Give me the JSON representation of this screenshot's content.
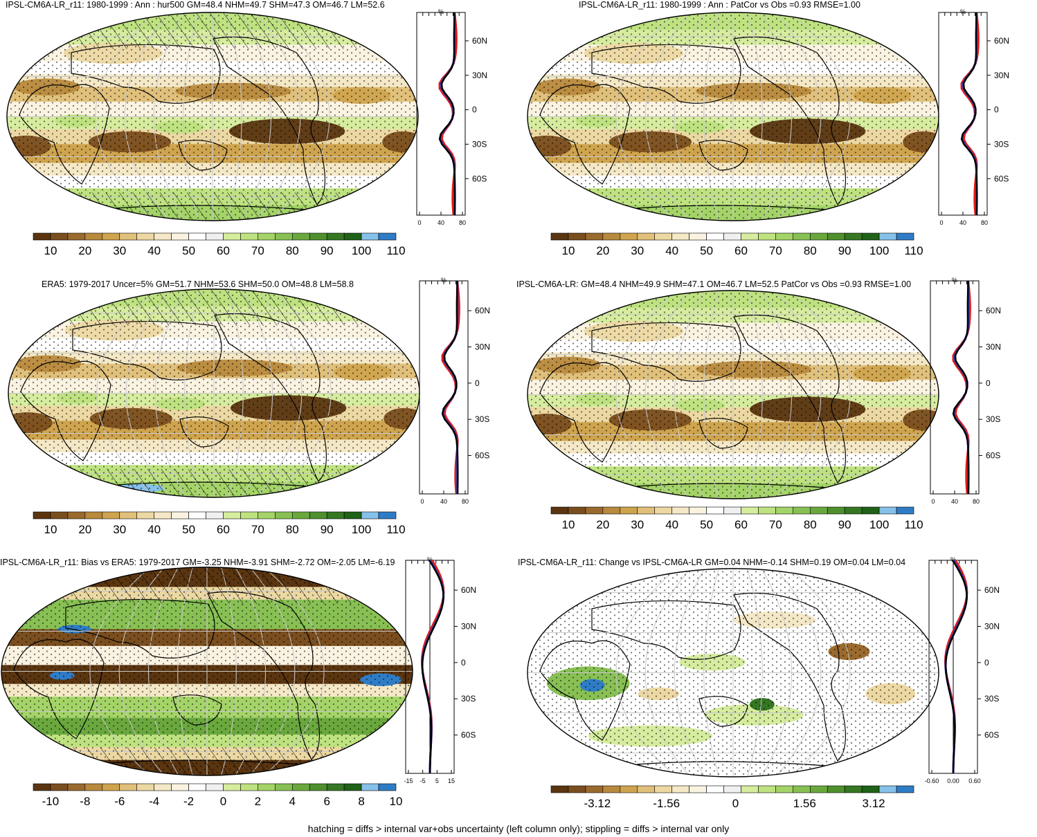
{
  "palettes": {
    "hur": [
      "#5a3510",
      "#7a4e1e",
      "#9a6a2e",
      "#b88a3e",
      "#cfa44e",
      "#e0c07a",
      "#ecd8a2",
      "#f4e8c6",
      "#faf3e1",
      "#ffffff",
      "#f0f0f0",
      "#d6ec9e",
      "#bee280",
      "#a4d468",
      "#88c054",
      "#6aa83e",
      "#4f902e",
      "#357722",
      "#1f6218",
      "#86c1ea",
      "#2f7cc6"
    ],
    "bias": [
      "#5a3510",
      "#7a4e1e",
      "#9a6a2e",
      "#b88a3e",
      "#cfa44e",
      "#e0c07a",
      "#ecd8a2",
      "#f4e8c6",
      "#faf3e1",
      "#ffffff",
      "#f0f0f0",
      "#d6ec9e",
      "#bee280",
      "#a4d468",
      "#88c054",
      "#6aa83e",
      "#4f902e",
      "#357722",
      "#1f6218",
      "#86c1ea",
      "#2f7cc6"
    ],
    "profile_colors": {
      "model": "#1a3fd6",
      "obs": "#e01b1b",
      "mean": "#000000"
    }
  },
  "panels": [
    {
      "id": "p1",
      "title": "IPSL-CM6A-LR_r11: 1980-1999 : Ann : hur500 GM=48.4 NHM=49.7 SHM=47.3 OM=46.7 LM=52.6",
      "kind": "hur",
      "hatch": true,
      "stipple": true,
      "profile_unit": "%",
      "profile_x_ticks": [
        "0",
        "40",
        "80"
      ],
      "profile_lat_ticks": [
        "60N",
        "30N",
        "0",
        "30S",
        "60S"
      ],
      "cbar_labels": [
        "10",
        "20",
        "30",
        "40",
        "50",
        "60",
        "70",
        "80",
        "90",
        "100",
        "110"
      ]
    },
    {
      "id": "p2",
      "title": "IPSL-CM6A-LR_r11: 1980-1999 : Ann : PatCor vs Obs =0.93 RMSE=1.00",
      "kind": "hur",
      "hatch": false,
      "stipple": true,
      "profile_unit": "%",
      "profile_x_ticks": [
        "0",
        "40",
        "80"
      ],
      "profile_lat_ticks": [
        "60N",
        "30N",
        "0",
        "30S",
        "60S"
      ],
      "cbar_labels": [
        "10",
        "20",
        "30",
        "40",
        "50",
        "60",
        "70",
        "80",
        "90",
        "100",
        "110"
      ]
    },
    {
      "id": "p3",
      "title": "ERA5: 1979-2017 Uncer=5% GM=51.7 NHM=53.6 SHM=50.0 OM=48.8 LM=58.8",
      "kind": "hur",
      "hatch": true,
      "stipple": true,
      "profile_unit": "%",
      "profile_x_ticks": [
        "0",
        "40",
        "80"
      ],
      "profile_lat_ticks": [
        "60N",
        "30N",
        "0",
        "30S",
        "60S"
      ],
      "cbar_labels": [
        "10",
        "20",
        "30",
        "40",
        "50",
        "60",
        "70",
        "80",
        "90",
        "100",
        "110"
      ]
    },
    {
      "id": "p4",
      "title": "IPSL-CM6A-LR: GM=48.4 NHM=49.9 SHM=47.1 OM=46.7 LM=52.5 PatCor vs Obs =0.93 RMSE=1.00",
      "kind": "hur",
      "hatch": false,
      "stipple": true,
      "profile_unit": "%",
      "profile_x_ticks": [
        "0",
        "40",
        "80"
      ],
      "profile_lat_ticks": [
        "60N",
        "30N",
        "0",
        "30S",
        "60S"
      ],
      "cbar_labels": [
        "10",
        "20",
        "30",
        "40",
        "50",
        "60",
        "70",
        "80",
        "90",
        "100",
        "110"
      ]
    },
    {
      "id": "p5",
      "title": "IPSL-CM6A-LR_r11: Bias vs ERA5: 1979-2017 GM=-3.25 NHM=-3.91 SHM=-2.72 OM=-2.05 LM=-6.19",
      "kind": "bias",
      "hatch": true,
      "stipple": true,
      "profile_unit": "%",
      "profile_x_ticks": [
        "-15",
        "-5",
        "5",
        "15"
      ],
      "profile_lat_ticks": [
        "60N",
        "30N",
        "0",
        "30S",
        "60S"
      ],
      "cbar_labels": [
        "-10",
        "-8",
        "-6",
        "-4",
        "-2",
        "0",
        "2",
        "4",
        "6",
        "8",
        "10"
      ]
    },
    {
      "id": "p6",
      "title": "IPSL-CM6A-LR_r11: Change vs IPSL-CM6A-LR GM=0.04 NHM=-0.14 SHM=0.19 OM=0.04 LM=0.04",
      "kind": "change",
      "hatch": false,
      "stipple": true,
      "profile_unit": "%",
      "profile_x_ticks": [
        "-0.60",
        "0.00",
        "0.60"
      ],
      "profile_lat_ticks": [
        "60N",
        "30N",
        "0",
        "30S",
        "60S"
      ],
      "cbar_labels": [
        "-3.12",
        "-1.56",
        "0",
        "1.56",
        "3.12"
      ]
    }
  ],
  "footer": "hatching = diffs > internal var+obs uncertainty (left column only); stippling = diffs > internal var only"
}
